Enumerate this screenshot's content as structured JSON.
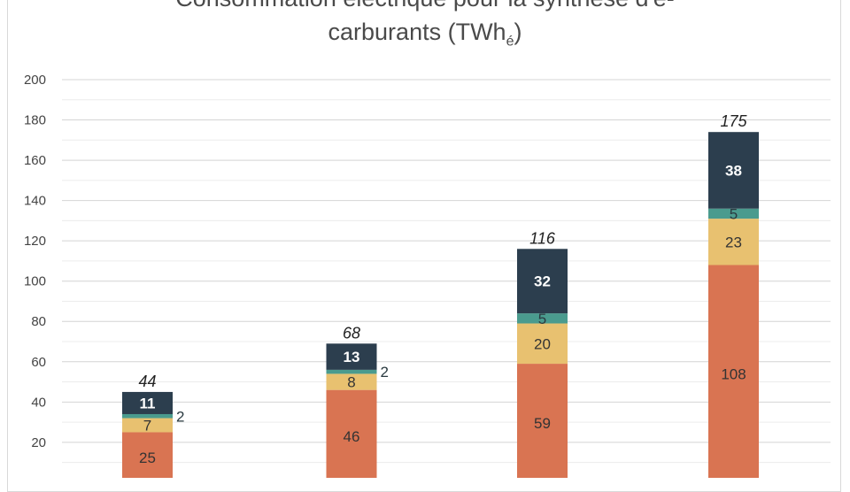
{
  "chart_data": {
    "type": "bar",
    "stacked": true,
    "title_line1": "Consommation électrique pour la synthèse d'e-",
    "title_line2": "carburants (TWh",
    "title_subscript": "é",
    "title_close": ")",
    "xlabel": "",
    "ylabel": "",
    "ylim": [
      0,
      200
    ],
    "y_ticks": [
      20,
      40,
      60,
      80,
      100,
      120,
      140,
      160,
      180,
      200
    ],
    "grid": true,
    "categories": [
      "",
      "",
      "",
      ""
    ],
    "series": [
      {
        "values": [
          25,
          46,
          59,
          108
        ],
        "color": "#d97452",
        "label_color": "#333333",
        "labels": [
          "25",
          "46",
          "59",
          "108"
        ]
      },
      {
        "values": [
          7,
          8,
          20,
          23
        ],
        "color": "#e8c170",
        "label_color": "#333333",
        "labels": [
          "7",
          "8",
          "20",
          "23"
        ]
      },
      {
        "values": [
          2,
          2,
          5,
          5
        ],
        "color": "#4a9b8e",
        "label_color": "#2a3a40",
        "labels": [
          "2",
          "2",
          "5",
          "5"
        ]
      },
      {
        "values": [
          11,
          13,
          32,
          38
        ],
        "color": "#2c3e4e",
        "label_color": "#ffffff",
        "labels": [
          "11",
          "13",
          "32",
          "38"
        ]
      }
    ],
    "totals": [
      "44",
      "68",
      "116",
      "175"
    ]
  }
}
